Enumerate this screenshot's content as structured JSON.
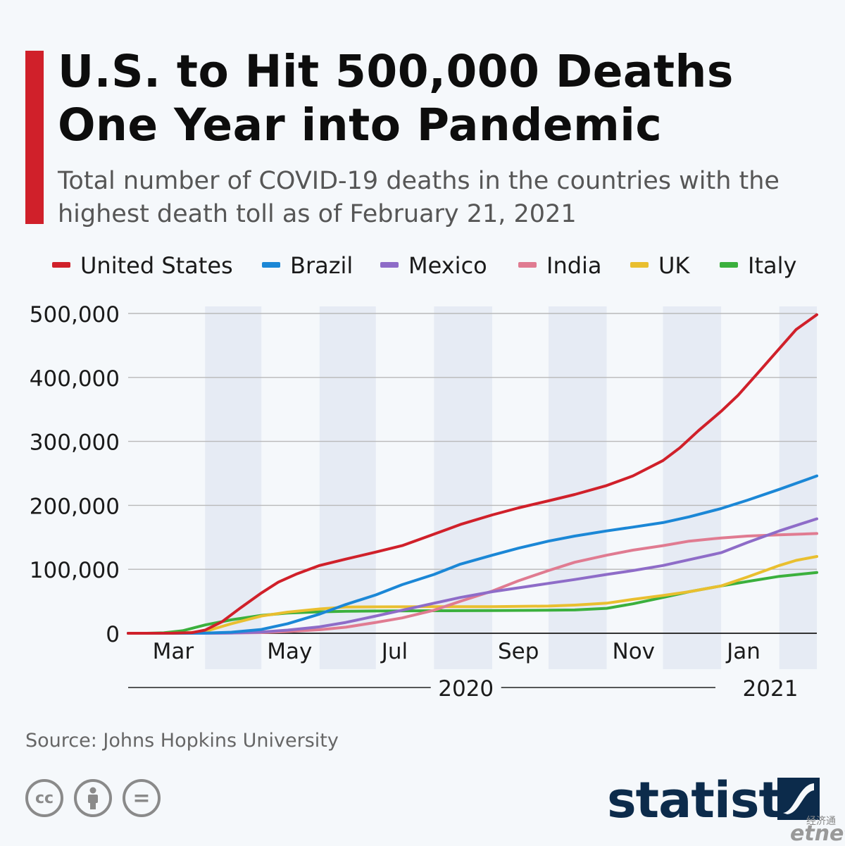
{
  "header": {
    "title": "U.S. to Hit 500,000 Deaths One Year into Pandemic",
    "subtitle": "Total number of COVID-19 deaths in the countries with the highest death toll as of February 21, 2021"
  },
  "footer": {
    "source": "Source: Johns Hopkins University",
    "brand": "statista",
    "watermark_cn": "经济通",
    "watermark_en": "etnet"
  },
  "license_icons": [
    {
      "name": "creative-commons-icon",
      "glyph": "cc"
    },
    {
      "name": "attribution-icon",
      "glyph": "i"
    },
    {
      "name": "no-derivatives-icon",
      "glyph": "="
    }
  ],
  "chart_data": {
    "type": "line",
    "title": "U.S. to Hit 500,000 Deaths One Year into Pandemic",
    "x_start": "2020-02-20",
    "x_end": "2021-02-21",
    "ylim": [
      0,
      500000
    ],
    "yticks": [
      {
        "value": 0,
        "label": "0"
      },
      {
        "value": 100000,
        "label": "100,000"
      },
      {
        "value": 200000,
        "label": "200,000"
      },
      {
        "value": 300000,
        "label": "300,000"
      },
      {
        "value": 400000,
        "label": "400,000"
      },
      {
        "value": 500000,
        "label": "500,000"
      }
    ],
    "month_labels": [
      {
        "date": "2020-03-01",
        "label": "Mar"
      },
      {
        "date": "2020-05-01",
        "label": "May"
      },
      {
        "date": "2020-07-01",
        "label": "Jul"
      },
      {
        "date": "2020-09-01",
        "label": "Sep"
      },
      {
        "date": "2020-11-01",
        "label": "Nov"
      },
      {
        "date": "2021-01-01",
        "label": "Jan"
      }
    ],
    "shaded_months": [
      [
        "2020-04-01",
        "2020-05-01"
      ],
      [
        "2020-06-01",
        "2020-07-01"
      ],
      [
        "2020-08-01",
        "2020-09-01"
      ],
      [
        "2020-10-01",
        "2020-11-01"
      ],
      [
        "2020-12-01",
        "2021-01-01"
      ],
      [
        "2021-02-01",
        "2021-02-21"
      ]
    ],
    "years": [
      {
        "label": "2020",
        "from": "2020-02-20",
        "to": "2020-12-31"
      },
      {
        "label": "2021",
        "from": "2021-01-01",
        "to": "2021-02-21"
      }
    ],
    "legend_position": "top",
    "grid": true,
    "series": [
      {
        "name": "United States",
        "color": "#d0202a",
        "points": [
          [
            "2020-02-20",
            0
          ],
          [
            "2020-03-15",
            60
          ],
          [
            "2020-03-25",
            1000
          ],
          [
            "2020-04-01",
            5000
          ],
          [
            "2020-04-10",
            18000
          ],
          [
            "2020-04-20",
            40000
          ],
          [
            "2020-05-01",
            63000
          ],
          [
            "2020-05-10",
            80000
          ],
          [
            "2020-05-20",
            93000
          ],
          [
            "2020-06-01",
            106000
          ],
          [
            "2020-06-15",
            116000
          ],
          [
            "2020-07-01",
            127000
          ],
          [
            "2020-07-15",
            137000
          ],
          [
            "2020-08-01",
            155000
          ],
          [
            "2020-08-15",
            170000
          ],
          [
            "2020-09-01",
            185000
          ],
          [
            "2020-09-15",
            196000
          ],
          [
            "2020-10-01",
            207000
          ],
          [
            "2020-10-15",
            217000
          ],
          [
            "2020-11-01",
            231000
          ],
          [
            "2020-11-15",
            246000
          ],
          [
            "2020-12-01",
            270000
          ],
          [
            "2020-12-10",
            290000
          ],
          [
            "2020-12-20",
            317000
          ],
          [
            "2021-01-01",
            347000
          ],
          [
            "2021-01-10",
            372000
          ],
          [
            "2021-01-20",
            405000
          ],
          [
            "2021-02-01",
            445000
          ],
          [
            "2021-02-10",
            475000
          ],
          [
            "2021-02-21",
            498000
          ]
        ]
      },
      {
        "name": "Brazil",
        "color": "#1b87d6",
        "points": [
          [
            "2020-02-20",
            0
          ],
          [
            "2020-03-20",
            10
          ],
          [
            "2020-04-01",
            200
          ],
          [
            "2020-04-15",
            1700
          ],
          [
            "2020-05-01",
            6000
          ],
          [
            "2020-05-15",
            15000
          ],
          [
            "2020-06-01",
            30000
          ],
          [
            "2020-06-15",
            45000
          ],
          [
            "2020-07-01",
            60000
          ],
          [
            "2020-07-15",
            76000
          ],
          [
            "2020-08-01",
            92000
          ],
          [
            "2020-08-15",
            108000
          ],
          [
            "2020-09-01",
            122000
          ],
          [
            "2020-09-15",
            133000
          ],
          [
            "2020-10-01",
            144000
          ],
          [
            "2020-10-15",
            152000
          ],
          [
            "2020-11-01",
            160000
          ],
          [
            "2020-11-15",
            166000
          ],
          [
            "2020-12-01",
            173000
          ],
          [
            "2020-12-15",
            182000
          ],
          [
            "2021-01-01",
            195000
          ],
          [
            "2021-01-15",
            208000
          ],
          [
            "2021-02-01",
            225000
          ],
          [
            "2021-02-21",
            246000
          ]
        ]
      },
      {
        "name": "Mexico",
        "color": "#8e6cc8",
        "points": [
          [
            "2020-02-20",
            0
          ],
          [
            "2020-04-01",
            30
          ],
          [
            "2020-04-15",
            450
          ],
          [
            "2020-05-01",
            2000
          ],
          [
            "2020-05-15",
            5000
          ],
          [
            "2020-06-01",
            10000
          ],
          [
            "2020-06-15",
            17000
          ],
          [
            "2020-07-01",
            27000
          ],
          [
            "2020-07-15",
            36000
          ],
          [
            "2020-08-01",
            47000
          ],
          [
            "2020-08-15",
            56000
          ],
          [
            "2020-09-01",
            65000
          ],
          [
            "2020-09-15",
            71000
          ],
          [
            "2020-10-01",
            78000
          ],
          [
            "2020-10-15",
            84000
          ],
          [
            "2020-11-01",
            92000
          ],
          [
            "2020-11-15",
            98000
          ],
          [
            "2020-12-01",
            106000
          ],
          [
            "2020-12-15",
            115000
          ],
          [
            "2021-01-01",
            126000
          ],
          [
            "2021-01-15",
            142000
          ],
          [
            "2021-02-01",
            160000
          ],
          [
            "2021-02-21",
            179000
          ]
        ]
      },
      {
        "name": "India",
        "color": "#e07b91",
        "points": [
          [
            "2020-02-20",
            0
          ],
          [
            "2020-04-01",
            40
          ],
          [
            "2020-04-15",
            400
          ],
          [
            "2020-05-01",
            1100
          ],
          [
            "2020-05-15",
            2700
          ],
          [
            "2020-06-01",
            5500
          ],
          [
            "2020-06-15",
            9500
          ],
          [
            "2020-07-01",
            17000
          ],
          [
            "2020-07-15",
            24000
          ],
          [
            "2020-08-01",
            36000
          ],
          [
            "2020-08-15",
            50000
          ],
          [
            "2020-09-01",
            66000
          ],
          [
            "2020-09-15",
            82000
          ],
          [
            "2020-10-01",
            98000
          ],
          [
            "2020-10-15",
            111000
          ],
          [
            "2020-11-01",
            122000
          ],
          [
            "2020-11-15",
            130000
          ],
          [
            "2020-12-01",
            137000
          ],
          [
            "2020-12-15",
            144000
          ],
          [
            "2021-01-01",
            149000
          ],
          [
            "2021-01-15",
            152000
          ],
          [
            "2021-02-01",
            154000
          ],
          [
            "2021-02-21",
            156000
          ]
        ]
      },
      {
        "name": "UK",
        "color": "#e9bf2f",
        "points": [
          [
            "2020-02-20",
            0
          ],
          [
            "2020-03-10",
            0
          ],
          [
            "2020-03-20",
            300
          ],
          [
            "2020-04-01",
            3000
          ],
          [
            "2020-04-15",
            15000
          ],
          [
            "2020-05-01",
            27000
          ],
          [
            "2020-05-15",
            33000
          ],
          [
            "2020-06-01",
            38000
          ],
          [
            "2020-06-15",
            41000
          ],
          [
            "2020-07-01",
            41300
          ],
          [
            "2020-08-01",
            41500
          ],
          [
            "2020-09-01",
            41600
          ],
          [
            "2020-10-01",
            42500
          ],
          [
            "2020-10-15",
            44000
          ],
          [
            "2020-11-01",
            47000
          ],
          [
            "2020-11-15",
            53000
          ],
          [
            "2020-12-01",
            59000
          ],
          [
            "2020-12-15",
            65000
          ],
          [
            "2021-01-01",
            74000
          ],
          [
            "2021-01-15",
            88000
          ],
          [
            "2021-02-01",
            106000
          ],
          [
            "2021-02-10",
            114000
          ],
          [
            "2021-02-21",
            120000
          ]
        ]
      },
      {
        "name": "Italy",
        "color": "#3bb03d",
        "points": [
          [
            "2020-02-20",
            0
          ],
          [
            "2020-03-01",
            30
          ],
          [
            "2020-03-10",
            630
          ],
          [
            "2020-03-20",
            4000
          ],
          [
            "2020-04-01",
            13000
          ],
          [
            "2020-04-15",
            21000
          ],
          [
            "2020-05-01",
            28000
          ],
          [
            "2020-05-15",
            31600
          ],
          [
            "2020-06-01",
            33500
          ],
          [
            "2020-06-15",
            34400
          ],
          [
            "2020-07-01",
            34800
          ],
          [
            "2020-08-01",
            35200
          ],
          [
            "2020-09-01",
            35500
          ],
          [
            "2020-10-01",
            36000
          ],
          [
            "2020-10-15",
            36500
          ],
          [
            "2020-11-01",
            39000
          ],
          [
            "2020-11-15",
            46000
          ],
          [
            "2020-12-01",
            56000
          ],
          [
            "2020-12-15",
            65000
          ],
          [
            "2021-01-01",
            74000
          ],
          [
            "2021-01-15",
            81000
          ],
          [
            "2021-02-01",
            89000
          ],
          [
            "2021-02-21",
            95000
          ]
        ]
      }
    ]
  }
}
